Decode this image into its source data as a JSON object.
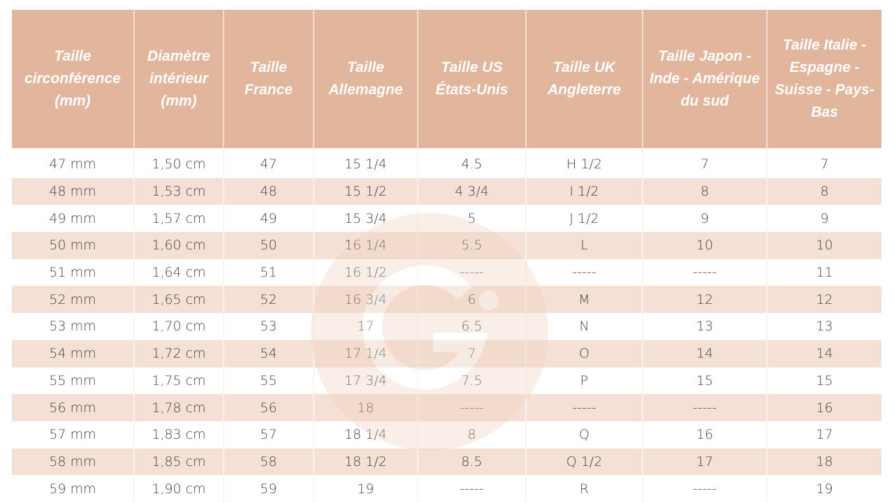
{
  "colors": {
    "header_bg": "#e2b59d",
    "header_text": "#ffffff",
    "alt_row_bg": "#f5e3d9",
    "text": "#444444"
  },
  "headers": [
    "Taille circonférence (mm)",
    "Diamètre intérieur (mm)",
    "Taille France",
    "Taille Allemagne",
    "Taille US États-Unis",
    "Taille UK Angleterre",
    "Taille Japon - Inde - Amérique du sud",
    "Taille Italie - Espagne - Suisse - Pays-Bas"
  ],
  "rows": [
    [
      "47 mm",
      "1,50 cm",
      "47",
      "15 1/4",
      "4.5",
      "H 1/2",
      "7",
      "7"
    ],
    [
      "48 mm",
      "1,53 cm",
      "48",
      "15 1/2",
      "4 3/4",
      "I 1/2",
      "8",
      "8"
    ],
    [
      "49 mm",
      "1,57 cm",
      "49",
      "15 3/4",
      "5",
      "J 1/2",
      "9",
      "9"
    ],
    [
      "50 mm",
      "1,60 cm",
      "50",
      "16 1/4",
      "5.5",
      "L",
      "10",
      "10"
    ],
    [
      "51 mm",
      "1,64 cm",
      "51",
      "16 1/2",
      "-----",
      "-----",
      "-----",
      "11"
    ],
    [
      "52 mm",
      "1,65 cm",
      "52",
      "16 3/4",
      "6",
      "M",
      "12",
      "12"
    ],
    [
      "53 mm",
      "1,70 cm",
      "53",
      "17",
      "6.5",
      "N",
      "13",
      "13"
    ],
    [
      "54 mm",
      "1,72 cm",
      "54",
      "17 1/4",
      "7",
      "O",
      "14",
      "14"
    ],
    [
      "55 mm",
      "1,75 cm",
      "55",
      "17 3/4",
      "7.5",
      "P",
      "15",
      "15"
    ],
    [
      "56 mm",
      "1,78 cm",
      "56",
      "18",
      "-----",
      "-----",
      "-----",
      "16"
    ],
    [
      "57 mm",
      "1,83 cm",
      "57",
      "18 1/4",
      "8",
      "Q",
      "16",
      "17"
    ],
    [
      "58 mm",
      "1,85 cm",
      "58",
      "18 1/2",
      "8.5",
      "Q 1/2",
      "17",
      "18"
    ],
    [
      "59 mm",
      "1,90 cm",
      "59",
      "19",
      "-----",
      "R",
      "-----",
      "19"
    ]
  ],
  "watermark": {
    "icon": "g-logo-circle"
  }
}
